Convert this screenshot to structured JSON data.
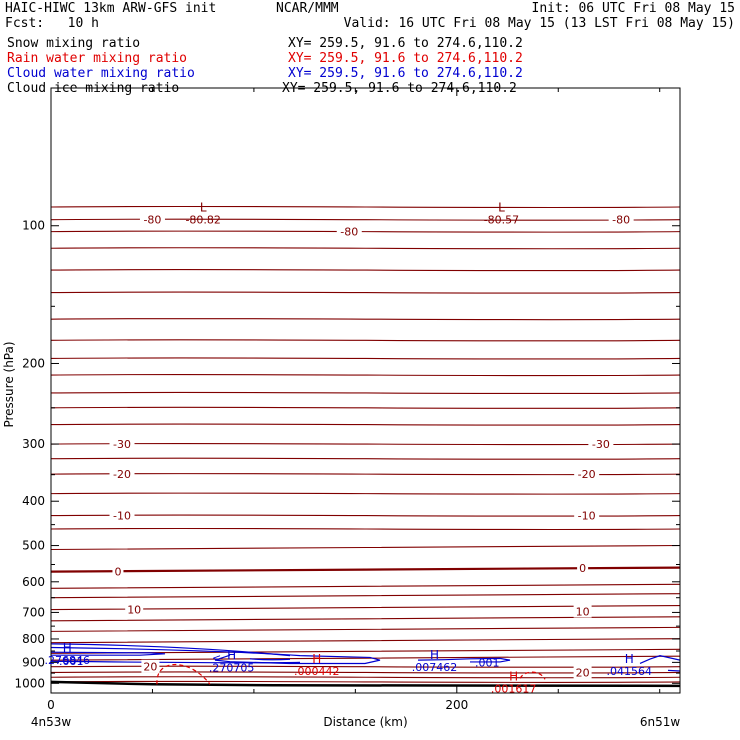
{
  "header": {
    "line1_left": "HAIC-HIWC 13km ARW-GFS init",
    "line1_center": "NCAR/MMM",
    "line1_right": "Init: 06 UTC Fri 08 May 15",
    "line2_left": "Fcst:   10 h",
    "line2_right": "Valid: 16 UTC Fri 08 May 15 (13 LST Fri 08 May 15)",
    "fields": [
      {
        "name": "Snow mixing ratio",
        "xy": "XY= 259.5, 91.6 to 274.6,110.2",
        "color": "#000000"
      },
      {
        "name": "Rain water mixing ratio",
        "xy": "XY= 259.5, 91.6 to 274.6,110.2",
        "color": "#e00000"
      },
      {
        "name": "Cloud water mixing ratio",
        "xy": "XY= 259.5, 91.6 to 274.6,110.2",
        "color": "#0000d0"
      },
      {
        "name": "Cloud ice mixing ratio",
        "xy": "XY= 259.5, 91.6 to 274.6,110.2",
        "color": "#000000"
      }
    ]
  },
  "chart_data": {
    "type": "contour-cross-section",
    "xlabel": "Distance (km)",
    "ylabel": "Pressure (hPa)",
    "x_ticks": [
      0,
      200
    ],
    "y_ticks": [
      100,
      200,
      300,
      400,
      500,
      600,
      700,
      800,
      900,
      1000
    ],
    "xlim": [
      0,
      310
    ],
    "ylim_pressure": [
      50,
      1050
    ],
    "y_scale": "log",
    "x_end_labels": {
      "left": "4n53w",
      "right": "6n51w"
    },
    "colors": {
      "temperature": "#800000",
      "rain": "#e00000",
      "cloud": "#0000d0",
      "terrain": "#000000"
    },
    "temperature_contour_labels": [
      {
        "text": "-80",
        "x": 50,
        "p": 97
      },
      {
        "text": "-80",
        "x": 147,
        "p": 103
      },
      {
        "text": "-80",
        "x": 281,
        "p": 97
      },
      {
        "text": "-30",
        "x": 35,
        "p": 300
      },
      {
        "text": "-30",
        "x": 271,
        "p": 300
      },
      {
        "text": "-20",
        "x": 35,
        "p": 349
      },
      {
        "text": "-20",
        "x": 264,
        "p": 349
      },
      {
        "text": "-10",
        "x": 35,
        "p": 430
      },
      {
        "text": "-10",
        "x": 264,
        "p": 430
      },
      {
        "text": "0",
        "x": 33,
        "p": 570
      },
      {
        "text": "0",
        "x": 262,
        "p": 560
      },
      {
        "text": "10",
        "x": 41,
        "p": 690
      },
      {
        "text": "10",
        "x": 262,
        "p": 697
      },
      {
        "text": "20",
        "x": 49,
        "p": 920
      },
      {
        "text": "20",
        "x": 262,
        "p": 947
      }
    ],
    "extrema": [
      {
        "kind": "L",
        "value": "-80.82",
        "x": 75,
        "p": 93,
        "color": "temperature"
      },
      {
        "kind": "L",
        "value": "-80.57",
        "x": 222,
        "p": 93,
        "color": "temperature"
      },
      {
        "kind": "H",
        "value": ".276846",
        "x": 8,
        "p": 855,
        "color": "cloud"
      },
      {
        "kind": "H",
        "value": ".270705",
        "x": 89,
        "p": 888,
        "color": "cloud"
      },
      {
        "kind": "H",
        "value": ".007462",
        "x": 189,
        "p": 885,
        "color": "cloud"
      },
      {
        "kind": "H",
        "value": ".041564",
        "x": 285,
        "p": 902,
        "color": "cloud"
      },
      {
        "kind": "H",
        "value": ".000442",
        "x": 131,
        "p": 903,
        "color": "rain"
      },
      {
        "kind": "H",
        "value": ".001617",
        "x": 228,
        "p": 987,
        "color": "rain"
      }
    ],
    "cloud_contour_labels": [
      {
        "text": ".001",
        "x": 10,
        "p": 893
      },
      {
        "text": ".001",
        "x": 215,
        "p": 900
      }
    ]
  }
}
